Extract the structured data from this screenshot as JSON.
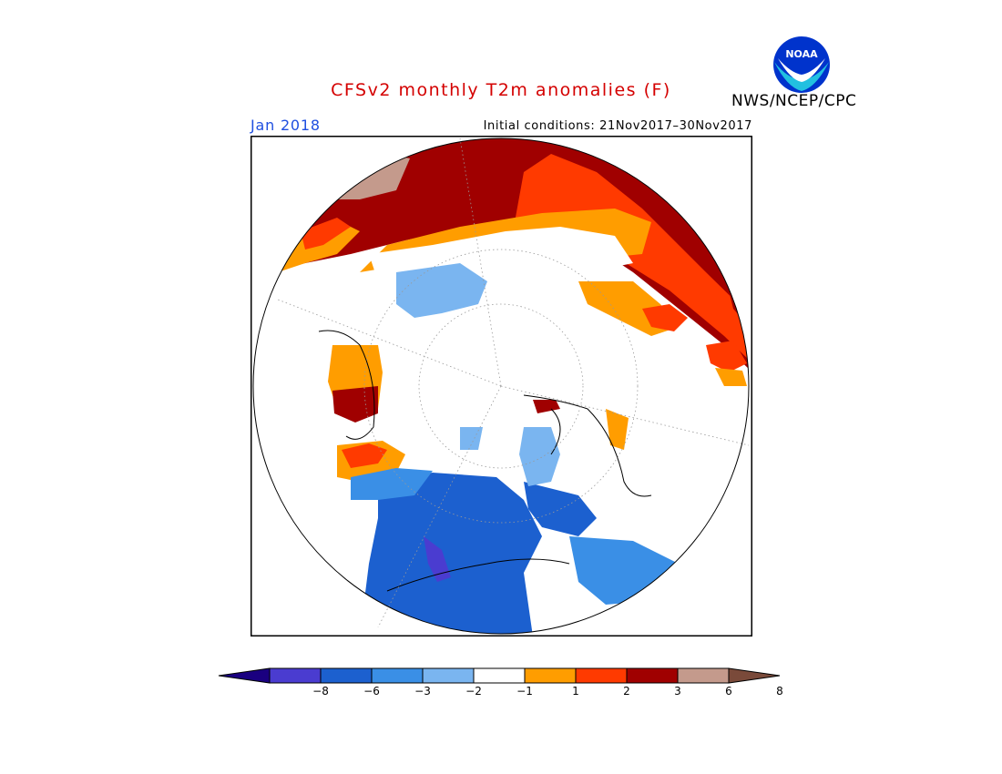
{
  "header": {
    "title": "CFSv2 monthly T2m anomalies (F)",
    "agency": "NWS/NCEP/CPC",
    "logo_text": "NOAA",
    "month": "Jan 2018",
    "initial_conditions": "Initial conditions: 21Nov2017–30Nov2017"
  },
  "legend": {
    "colors": [
      "#1a0080",
      "#4a3cd0",
      "#1c60cf",
      "#3a8fe6",
      "#7ab5f0",
      "#ffffff",
      "#ff9d00",
      "#ff3a00",
      "#a00000",
      "#c49a8c",
      "#7a4a3a"
    ],
    "labels": [
      "−8",
      "−6",
      "−3",
      "−2",
      "−1",
      "1",
      "2",
      "3",
      "6",
      "8"
    ]
  },
  "colors": {
    "title": "#d40000",
    "month": "#1f4fe0"
  }
}
